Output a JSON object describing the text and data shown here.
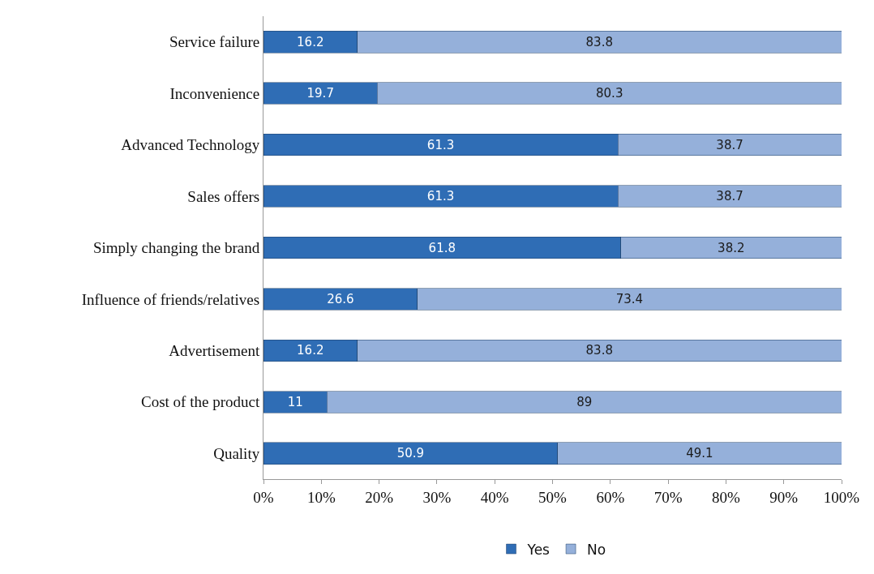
{
  "chart_data": {
    "type": "bar",
    "orientation": "horizontal",
    "stacked": true,
    "data_labels": true,
    "grid": false,
    "legend": "bottom",
    "categories": [
      "Service failure",
      "Inconvenience",
      "Advanced Technology",
      "Sales offers",
      "Simply changing the brand",
      "Influence of friends/relatives",
      "Advertisement",
      "Cost of the product",
      "Quality"
    ],
    "series": [
      {
        "name": "Yes",
        "color": "#2f6db5",
        "values": [
          16.2,
          19.7,
          61.3,
          61.3,
          61.8,
          26.6,
          16.2,
          11,
          50.9
        ]
      },
      {
        "name": "No",
        "color": "#95b0da",
        "values": [
          83.8,
          80.3,
          38.7,
          38.7,
          38.2,
          73.4,
          83.8,
          89,
          49.1
        ]
      }
    ],
    "xlim": [
      0,
      100
    ],
    "xticks": [
      {
        "value": 0,
        "label": "0%"
      },
      {
        "value": 10,
        "label": "10%"
      },
      {
        "value": 20,
        "label": "20%"
      },
      {
        "value": 30,
        "label": "30%"
      },
      {
        "value": 40,
        "label": "40%"
      },
      {
        "value": 50,
        "label": "50%"
      },
      {
        "value": 60,
        "label": "60%"
      },
      {
        "value": 70,
        "label": "70%"
      },
      {
        "value": 80,
        "label": "80%"
      },
      {
        "value": 90,
        "label": "90%"
      },
      {
        "value": 100,
        "label": "100%"
      }
    ]
  }
}
